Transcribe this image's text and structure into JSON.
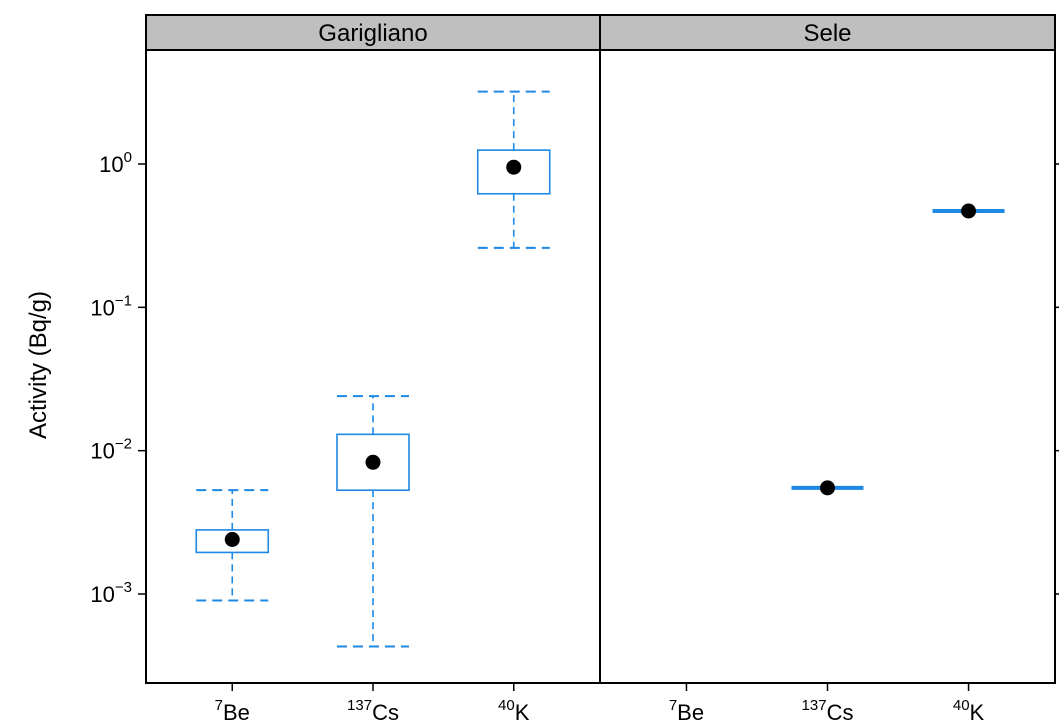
{
  "chart_data": {
    "type": "box",
    "ylabel": "Activity (Bq/g)",
    "y_scale": "log10",
    "ylim": [
      0.0002,
      6.0
    ],
    "y_ticks": [
      {
        "value": 0.001,
        "base": "10",
        "exp": "−3"
      },
      {
        "value": 0.01,
        "base": "10",
        "exp": "−2"
      },
      {
        "value": 0.1,
        "base": "10",
        "exp": "−1"
      },
      {
        "value": 1,
        "base": "10",
        "exp": "0"
      }
    ],
    "categories": [
      {
        "sup": "7",
        "main": "Be"
      },
      {
        "sup": "137",
        "main": "Cs"
      },
      {
        "sup": "40",
        "main": "K"
      }
    ],
    "panels": [
      {
        "strip": "Garigliano",
        "boxes": [
          {
            "category": "7Be",
            "whisker_low": 0.0009,
            "q1": 0.00195,
            "median": 0.0024,
            "q3": 0.0028,
            "whisker_high": 0.0053
          },
          {
            "category": "137Cs",
            "whisker_low": 0.00043,
            "q1": 0.0053,
            "median": 0.0083,
            "q3": 0.013,
            "whisker_high": 0.024
          },
          {
            "category": "40K",
            "whisker_low": 0.26,
            "q1": 0.62,
            "median": 0.95,
            "q3": 1.25,
            "whisker_high": 3.2
          }
        ]
      },
      {
        "strip": "Sele",
        "boxes": [
          {
            "category": "7Be",
            "whisker_low": null,
            "q1": null,
            "median": null,
            "q3": null,
            "whisker_high": null
          },
          {
            "category": "137Cs",
            "whisker_low": 0.0055,
            "q1": 0.0055,
            "median": 0.0055,
            "q3": 0.0055,
            "whisker_high": 0.0055
          },
          {
            "category": "40K",
            "whisker_low": 0.47,
            "q1": 0.47,
            "median": 0.47,
            "q3": 0.47,
            "whisker_high": 0.47
          }
        ]
      }
    ],
    "colors": {
      "box": "#1e88e5",
      "median_dot": "#000000",
      "strip_bg": "#bfbfbf"
    }
  }
}
